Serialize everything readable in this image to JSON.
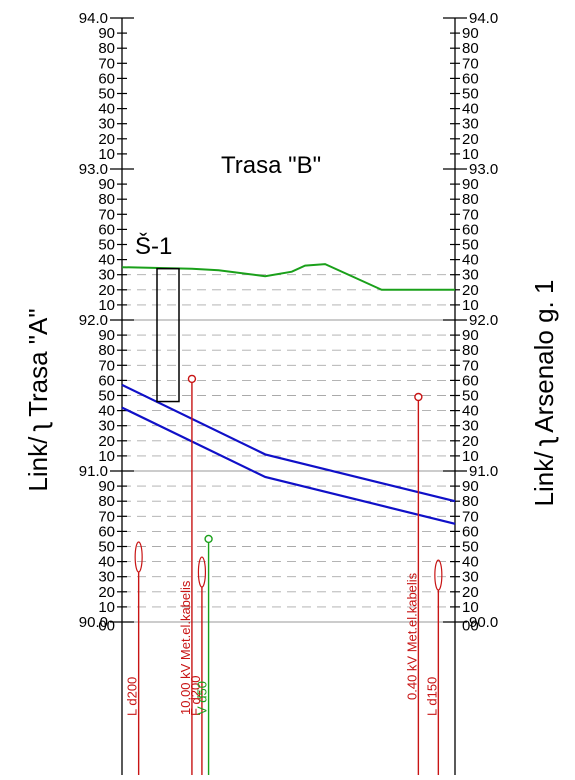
{
  "left_side_title": "Link/ ʅ Trasa \"A\"",
  "right_side_title": "Link/ ʅ Arsenalo g. 1",
  "center_title": "Trasa \"B\"",
  "major_labels": [
    "94.0",
    "93.0",
    "92.0",
    "91.0",
    "90.0"
  ],
  "minor_labels": [
    "90",
    "80",
    "70",
    "60",
    "50",
    "40",
    "30",
    "20",
    "10"
  ],
  "bottom_minor_label": "00",
  "well": {
    "label": "Š-1",
    "top_elevation": 92.34,
    "bottom_elevation": 91.46
  },
  "elevation_range": [
    89.97,
    94.0
  ],
  "ground_profile": {
    "color": "#1aa01a",
    "points": [
      [
        0,
        92.35
      ],
      [
        0.21,
        92.34
      ],
      [
        0.29,
        92.33
      ],
      [
        0.43,
        92.29
      ],
      [
        0.51,
        92.32
      ],
      [
        0.55,
        92.36
      ],
      [
        0.61,
        92.37
      ],
      [
        0.78,
        92.2
      ],
      [
        1,
        92.2
      ]
    ]
  },
  "pipe_upper": {
    "color": "#1010c8",
    "points": [
      [
        0,
        91.57
      ],
      [
        0.43,
        91.11
      ],
      [
        1,
        90.8
      ]
    ]
  },
  "pipe_lower": {
    "color": "#1010c8",
    "points": [
      [
        0,
        91.42
      ],
      [
        0.43,
        90.96
      ],
      [
        1,
        90.65
      ]
    ]
  },
  "utilities": [
    {
      "label": "L d200",
      "color": "#c81414",
      "position": 0.05,
      "top": 90.53,
      "marker": "oval"
    },
    {
      "label": "10.00 kV Met.el.kabelis",
      "color": "#c81414",
      "position": 0.21,
      "top": 91.61,
      "marker": "circle"
    },
    {
      "label": "F d200",
      "color": "#c81414",
      "position": 0.24,
      "top": 90.43,
      "marker": "oval"
    },
    {
      "label": "V d50",
      "color": "#1aa01a",
      "position": 0.26,
      "top": 90.55,
      "marker": "circle"
    },
    {
      "label": "0.40 kV Met.el.kabelis",
      "color": "#c81414",
      "position": 0.89,
      "top": 91.49,
      "marker": "circle"
    },
    {
      "label": "L d150",
      "color": "#c81414",
      "position": 0.95,
      "top": 90.41,
      "marker": "oval"
    }
  ]
}
